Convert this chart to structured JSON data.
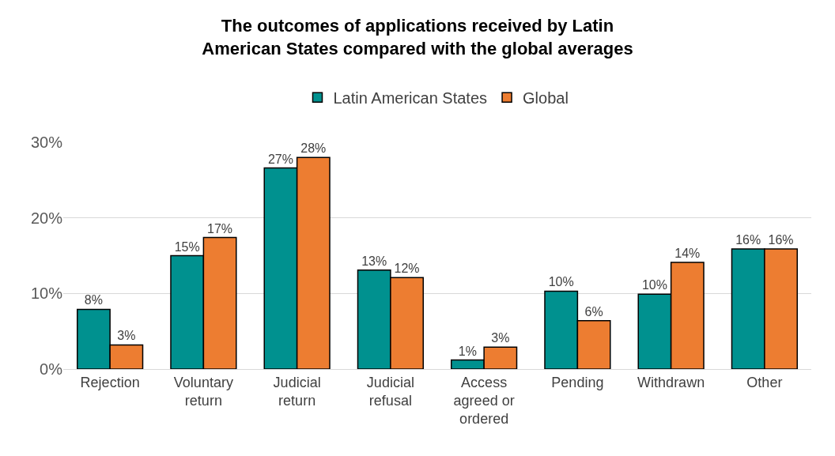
{
  "chart_data": {
    "type": "bar",
    "title": "The outcomes of applications received by Latin American States compared with the global averages",
    "categories": [
      "Rejection",
      "Voluntary return",
      "Judicial return",
      "Judicial refusal",
      "Access agreed or ordered",
      "Pending",
      "Withdrawn",
      "Other"
    ],
    "series": [
      {
        "name": "Latin American States",
        "color": "#00918f",
        "values": [
          7.9,
          15,
          26.6,
          13.1,
          1.2,
          10.3,
          9.9,
          15.9
        ],
        "value_labels": [
          "8%",
          "15%",
          "27%",
          "13%",
          "1%",
          "10%",
          "10%",
          "16%"
        ]
      },
      {
        "name": "Global",
        "color": "#ed7d31",
        "values": [
          3.2,
          17.4,
          28,
          12.1,
          2.9,
          6.4,
          14.1,
          15.9
        ],
        "value_labels": [
          "3%",
          "17%",
          "28%",
          "12%",
          "3%",
          "6%",
          "14%",
          "16%"
        ]
      }
    ],
    "ylim": [
      0,
      30
    ],
    "yticks": [
      {
        "value": 0,
        "label": "0%"
      },
      {
        "value": 10,
        "label": "10%"
      },
      {
        "value": 20,
        "label": "20%"
      },
      {
        "value": 30,
        "label": "30%"
      }
    ],
    "grid": "y",
    "legend": "top"
  }
}
